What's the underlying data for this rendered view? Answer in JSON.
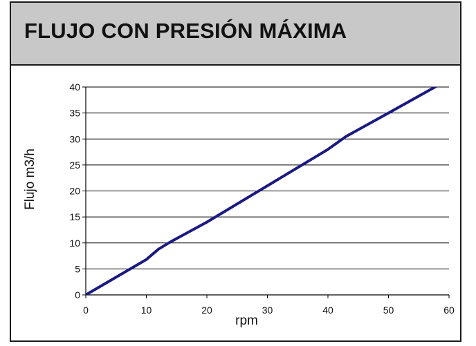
{
  "header": {
    "title": "FLUJO CON PRESIÓN MÁXIMA",
    "background": "#c8c8c8"
  },
  "chart_data": {
    "type": "line",
    "title": "FLUJO CON PRESIÓN MÁXIMA",
    "xlabel": "rpm",
    "ylabel": "Flujo m3/h",
    "xlim": [
      0,
      60
    ],
    "ylim": [
      0,
      40
    ],
    "x_ticks": [
      "0",
      "10",
      "20",
      "30",
      "40",
      "50",
      "60"
    ],
    "y_ticks": [
      "0",
      "5",
      "10",
      "15",
      "20",
      "25",
      "30",
      "35",
      "40"
    ],
    "grid": "horizontal",
    "legend": "none",
    "series": [
      {
        "color": "#1a1a80",
        "x": [
          0,
          10,
          12,
          14,
          20,
          30,
          40,
          43,
          50,
          58
        ],
        "y": [
          0,
          6.8,
          8.8,
          10.2,
          14.0,
          21.0,
          28.0,
          30.5,
          35.0,
          40.2
        ]
      }
    ]
  }
}
